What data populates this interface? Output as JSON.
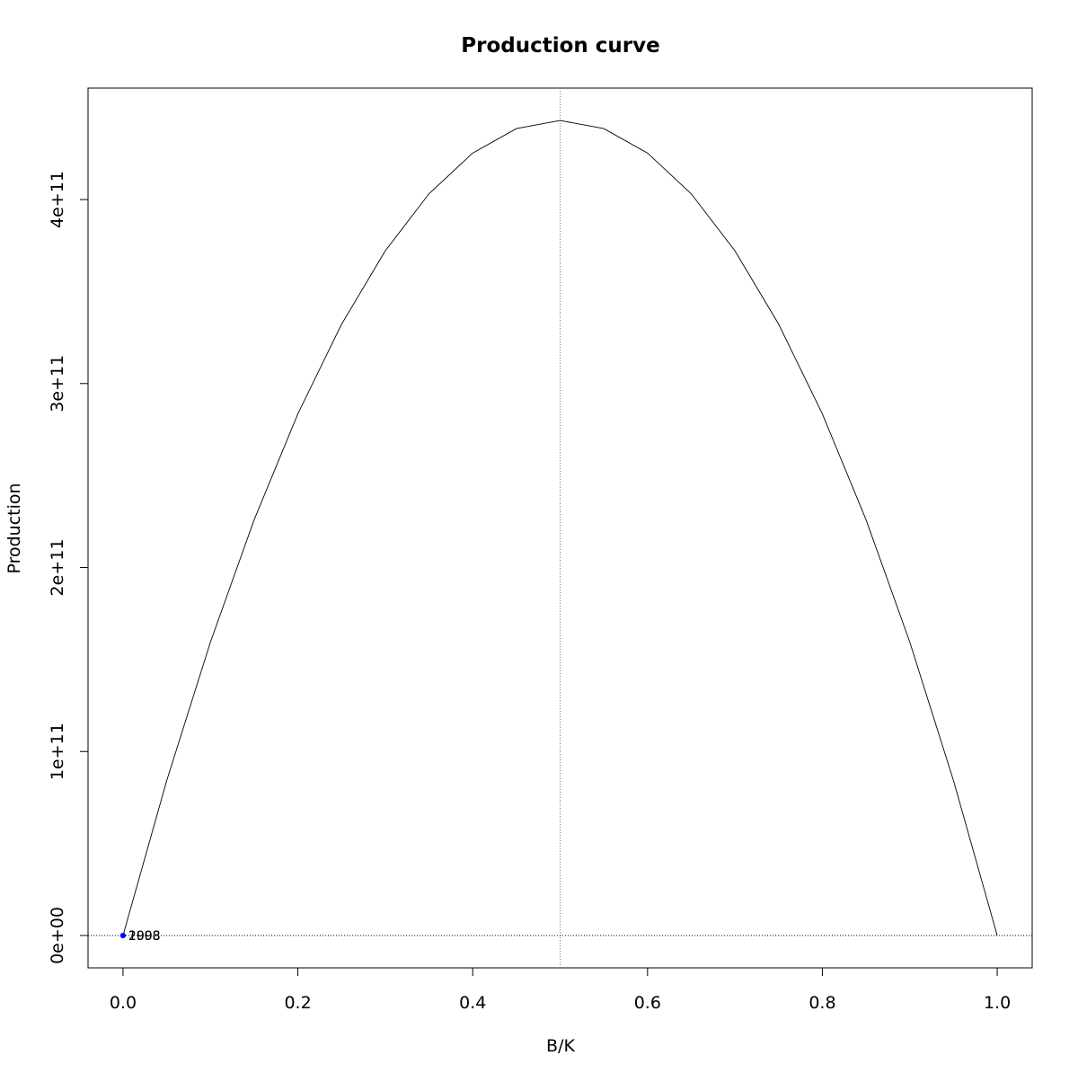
{
  "chart_data": {
    "type": "line",
    "title": "Production curve",
    "x_label": "B/K",
    "y_label": "Production",
    "xlim": [
      -0.04,
      1.04
    ],
    "ylim": [
      -17600000000,
      460600000000
    ],
    "xticks": [
      {
        "value": 0,
        "label": "0.0"
      },
      0.2,
      0.4,
      0.6,
      0.8,
      {
        "value": 1,
        "label": "1.0"
      }
    ],
    "yticks": [
      {
        "value": 0,
        "label": "0e+00"
      },
      {
        "value": 100000000000,
        "label": "1e+11"
      },
      {
        "value": 200000000000,
        "label": "2e+11"
      },
      {
        "value": 300000000000,
        "label": "3e+11"
      },
      {
        "value": 400000000000,
        "label": "4e+11"
      }
    ],
    "series": [
      {
        "color": "#000000",
        "x": [
          0,
          0.05,
          0.1,
          0.15,
          0.2,
          0.25,
          0.3,
          0.35,
          0.4,
          0.45,
          0.5,
          0.55,
          0.6,
          0.65,
          0.7,
          0.75,
          0.8,
          0.85,
          0.9,
          0.95,
          1
        ],
        "values": [
          0,
          84170000000,
          159480000000,
          225930000000,
          283520000000,
          332250000000,
          372120000000,
          403130000000,
          425280000000,
          438570000000,
          443000000000,
          438570000000,
          425280000000,
          403130000000,
          372120000000,
          332250000000,
          283520000000,
          225930000000,
          159480000000,
          84170000000,
          0
        ]
      }
    ],
    "points": {
      "color": "#0000ff",
      "x": [
        0,
        0
      ],
      "values": [
        0,
        0
      ],
      "labels": [
        "1998",
        "2008"
      ]
    },
    "vline": 0.5,
    "hline": 0
  }
}
